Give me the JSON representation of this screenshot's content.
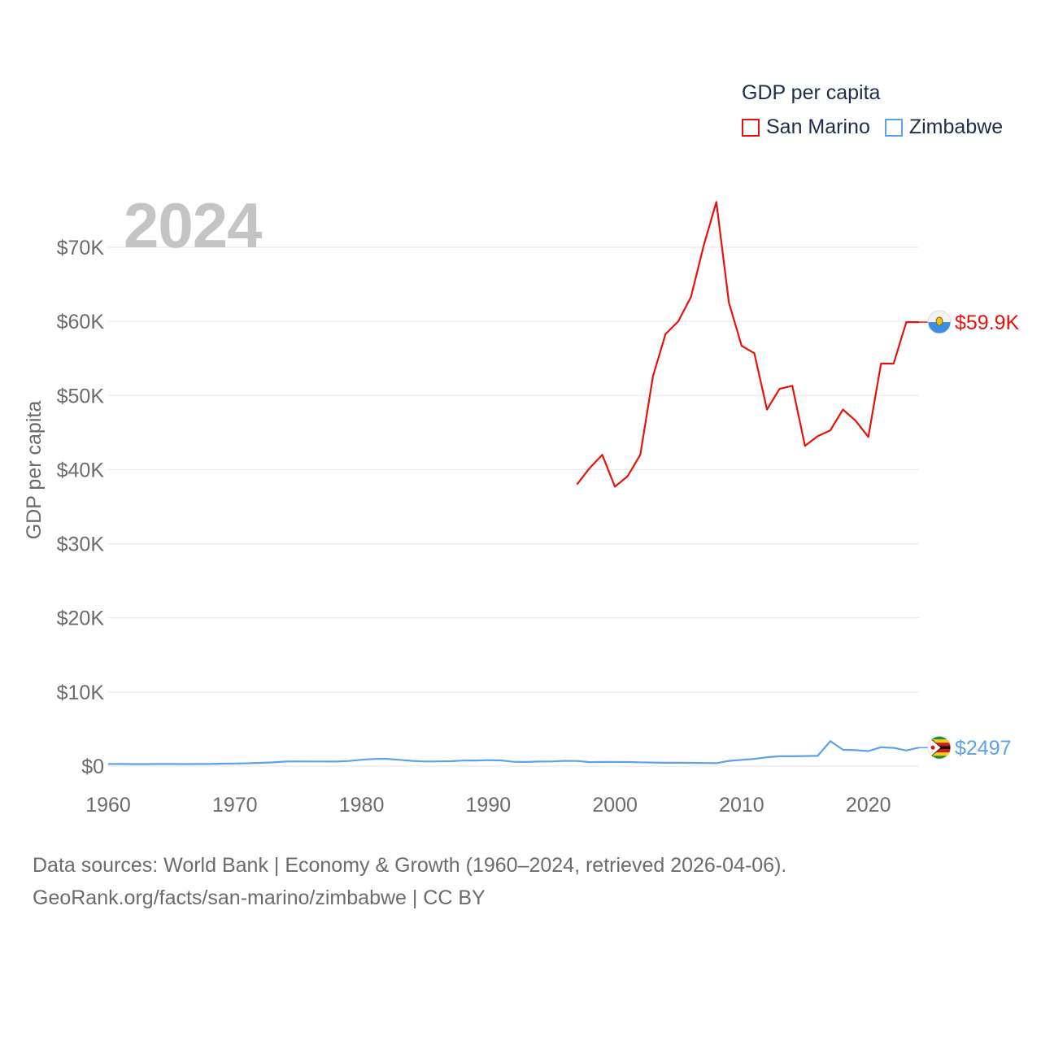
{
  "chart_data": {
    "type": "line",
    "title": "",
    "year_label": "2024",
    "legend_title": "GDP per capita",
    "ylabel": "GDP per capita",
    "xlabel": "",
    "xlim": [
      1960,
      2024
    ],
    "ylim": [
      0,
      70000
    ],
    "x_ticks": [
      1960,
      1970,
      1980,
      1990,
      2000,
      2010,
      2020
    ],
    "x_tick_labels": [
      "1960",
      "1970",
      "1980",
      "1990",
      "2000",
      "2010",
      "2020"
    ],
    "y_ticks": [
      0,
      10000,
      20000,
      30000,
      40000,
      50000,
      60000,
      70000
    ],
    "y_tick_labels": [
      "$0",
      "$10K",
      "$20K",
      "$30K",
      "$40K",
      "$50K",
      "$60K",
      "$70K"
    ],
    "series": [
      {
        "name": "San Marino",
        "color": "#e8120c",
        "end_label": "$59.9K",
        "flag_icon": "san-marino-flag-icon",
        "x": [
          1997,
          1998,
          1999,
          2000,
          2001,
          2002,
          2003,
          2004,
          2005,
          2006,
          2007,
          2008,
          2009,
          2010,
          2011,
          2012,
          2013,
          2014,
          2015,
          2016,
          2017,
          2018,
          2019,
          2020,
          2021,
          2022,
          2023,
          2024
        ],
        "values": [
          38000,
          40200,
          42000,
          37700,
          39100,
          42000,
          52600,
          58300,
          60000,
          63300,
          70200,
          76100,
          62500,
          56700,
          55700,
          48100,
          50900,
          51300,
          43200,
          44500,
          45300,
          48100,
          46600,
          44400,
          54300,
          54300,
          59900,
          59900
        ]
      },
      {
        "name": "Zimbabwe",
        "color": "#5ba3e6",
        "end_label": "$2497",
        "flag_icon": "zimbabwe-flag-icon",
        "x": [
          1960,
          1961,
          1962,
          1963,
          1964,
          1965,
          1966,
          1967,
          1968,
          1969,
          1970,
          1971,
          1972,
          1973,
          1974,
          1975,
          1976,
          1977,
          1978,
          1979,
          1980,
          1981,
          1982,
          1983,
          1984,
          1985,
          1986,
          1987,
          1988,
          1989,
          1990,
          1991,
          1992,
          1993,
          1994,
          1995,
          1996,
          1997,
          1998,
          1999,
          2000,
          2001,
          2002,
          2003,
          2004,
          2005,
          2006,
          2007,
          2008,
          2009,
          2010,
          2011,
          2012,
          2013,
          2014,
          2015,
          2016,
          2017,
          2018,
          2019,
          2020,
          2021,
          2022,
          2023,
          2024
        ],
        "values": [
          280,
          280,
          270,
          270,
          280,
          290,
          270,
          290,
          290,
          330,
          350,
          380,
          440,
          510,
          610,
          640,
          620,
          620,
          610,
          690,
          860,
          970,
          980,
          850,
          700,
          620,
          640,
          660,
          750,
          760,
          800,
          770,
          580,
          560,
          610,
          620,
          710,
          690,
          540,
          560,
          560,
          550,
          520,
          480,
          450,
          450,
          440,
          420,
          400,
          700,
          850,
          980,
          1200,
          1330,
          1330,
          1360,
          1380,
          3370,
          2200,
          2150,
          2030,
          2550,
          2460,
          2110,
          2497
        ]
      }
    ],
    "source_line_1": "Data sources: World Bank | Economy & Growth (1960–2024, retrieved 2026-04-06).",
    "source_line_2": "GeoRank.org/facts/san-marino/zimbabwe | CC BY"
  }
}
